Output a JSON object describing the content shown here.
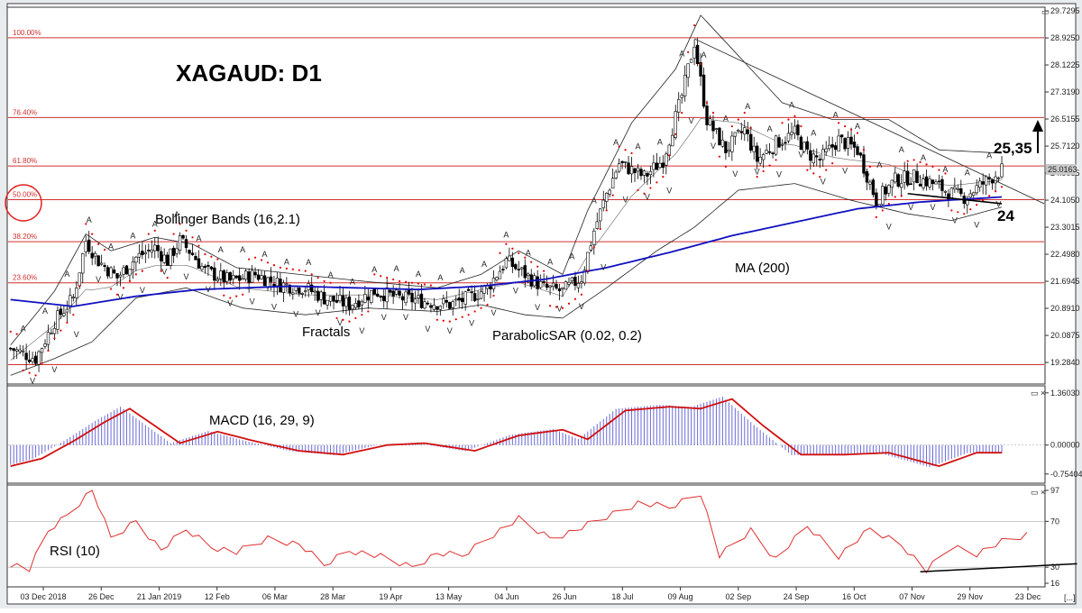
{
  "chart_title": "XAGAUD: D1",
  "colors": {
    "frame": "#3d3d3d",
    "fib": "#d03030",
    "ma": "#1010c0",
    "bollinger": "#222222",
    "sar": "#e00000",
    "fractal_up": "#1db81d",
    "fractal_down": "#d02020",
    "macd_hist": "#6b6bd6",
    "macd_signal": "#d01010",
    "rsi": "#e03030"
  },
  "annotations": {
    "bollinger": "Bollinger Bands (16,2.1)",
    "fractals": "Fractals",
    "parabolic": "ParabolicSAR (0.02, 0.2)",
    "ma": "MA (200)",
    "macd": "MACD (16, 29, 9)",
    "rsi": "RSI (10)",
    "resistance": "25,35",
    "support": "24"
  },
  "window_buttons": {
    "main": "▭",
    "sub": "▭ ×",
    "scroll": "[...]"
  },
  "chart_data": [
    {
      "type": "candlestick",
      "title": "XAGAUD: D1",
      "price_ticks": [
        "29.7295",
        "28.9250",
        "28.1225",
        "27.3190",
        "26.5155",
        "25.7120",
        "24.9085",
        "24.1050",
        "23.3015",
        "22.4980",
        "21.6945",
        "20.8910",
        "20.0875",
        "19.2840"
      ],
      "current_price_label": "25.0163",
      "ylim": [
        18.75,
        29.73
      ],
      "fib_levels": [
        {
          "label": "100.00%",
          "value": 28.93
        },
        {
          "label": "76.40%",
          "value": 26.56
        },
        {
          "label": "61.80%",
          "value": 25.12
        },
        {
          "label": "50.00%",
          "value": 24.12
        },
        {
          "label": "38.20%",
          "value": 22.87
        },
        {
          "label": "23.60%",
          "value": 21.65
        },
        {
          "label": "",
          "value": 19.22
        }
      ],
      "x_labels": [
        "03 Dec 2018",
        "26 Dec",
        "21 Jan 2019",
        "12 Feb",
        "06 Mar",
        "28 Mar",
        "19 Apr",
        "13 May",
        "04 Jun",
        "26 Jun",
        "18 Jul",
        "09 Aug",
        "02 Sep",
        "24 Sep",
        "16 Oct",
        "07 Nov",
        "29 Nov",
        "23 Dec"
      ],
      "close_path": [
        [
          0,
          19.7
        ],
        [
          8,
          19.4
        ],
        [
          14,
          20.5
        ],
        [
          20,
          21.2
        ],
        [
          24,
          22.9
        ],
        [
          28,
          22.3
        ],
        [
          34,
          21.8
        ],
        [
          40,
          22.4
        ],
        [
          46,
          22.7
        ],
        [
          50,
          22.3
        ],
        [
          54,
          22.9
        ],
        [
          58,
          22.5
        ],
        [
          62,
          22.0
        ],
        [
          70,
          21.7
        ],
        [
          78,
          21.9
        ],
        [
          86,
          21.6
        ],
        [
          94,
          21.5
        ],
        [
          100,
          21.2
        ],
        [
          108,
          21.0
        ],
        [
          116,
          21.4
        ],
        [
          124,
          21.2
        ],
        [
          132,
          21.1
        ],
        [
          140,
          21.0
        ],
        [
          146,
          21.2
        ],
        [
          152,
          21.5
        ],
        [
          158,
          22.3
        ],
        [
          164,
          21.9
        ],
        [
          170,
          21.5
        ],
        [
          176,
          21.4
        ],
        [
          182,
          21.8
        ],
        [
          186,
          23.2
        ],
        [
          190,
          24.3
        ],
        [
          194,
          25.2
        ],
        [
          198,
          25.0
        ],
        [
          202,
          24.8
        ],
        [
          208,
          25.3
        ],
        [
          214,
          27.2
        ],
        [
          218,
          28.8
        ],
        [
          222,
          26.5
        ],
        [
          228,
          25.6
        ],
        [
          234,
          26.2
        ],
        [
          238,
          25.3
        ],
        [
          244,
          25.8
        ],
        [
          250,
          26.1
        ],
        [
          254,
          25.5
        ],
        [
          258,
          25.3
        ],
        [
          264,
          25.9
        ],
        [
          270,
          25.6
        ],
        [
          276,
          24.1
        ],
        [
          282,
          24.7
        ],
        [
          288,
          24.8
        ],
        [
          294,
          24.6
        ],
        [
          300,
          24.3
        ],
        [
          304,
          24.2
        ],
        [
          310,
          24.6
        ],
        [
          316,
          25.0
        ]
      ],
      "ma200_path": [
        [
          0,
          21.15
        ],
        [
          20,
          20.95
        ],
        [
          40,
          21.25
        ],
        [
          60,
          21.45
        ],
        [
          90,
          21.55
        ],
        [
          130,
          21.45
        ],
        [
          150,
          21.55
        ],
        [
          170,
          21.75
        ],
        [
          190,
          22.1
        ],
        [
          210,
          22.55
        ],
        [
          230,
          23.05
        ],
        [
          250,
          23.45
        ],
        [
          270,
          23.85
        ],
        [
          290,
          24.05
        ],
        [
          316,
          24.2
        ]
      ],
      "bollinger_upper_path": [
        [
          0,
          19.8
        ],
        [
          14,
          21.4
        ],
        [
          24,
          23.1
        ],
        [
          32,
          22.6
        ],
        [
          46,
          23.0
        ],
        [
          58,
          22.8
        ],
        [
          72,
          22.1
        ],
        [
          92,
          21.9
        ],
        [
          112,
          21.7
        ],
        [
          136,
          21.5
        ],
        [
          150,
          21.9
        ],
        [
          162,
          22.6
        ],
        [
          176,
          21.9
        ],
        [
          184,
          23.8
        ],
        [
          198,
          26.4
        ],
        [
          212,
          28.0
        ],
        [
          220,
          29.6
        ],
        [
          230,
          28.6
        ],
        [
          246,
          27.0
        ],
        [
          262,
          26.5
        ],
        [
          280,
          26.5
        ],
        [
          296,
          25.6
        ],
        [
          316,
          25.5
        ]
      ],
      "bollinger_lower_path": [
        [
          0,
          18.9
        ],
        [
          14,
          19.4
        ],
        [
          26,
          19.9
        ],
        [
          40,
          21.2
        ],
        [
          56,
          21.5
        ],
        [
          74,
          20.9
        ],
        [
          94,
          20.7
        ],
        [
          114,
          20.9
        ],
        [
          136,
          20.8
        ],
        [
          150,
          21.0
        ],
        [
          164,
          20.7
        ],
        [
          176,
          20.6
        ],
        [
          190,
          21.5
        ],
        [
          206,
          22.6
        ],
        [
          218,
          23.3
        ],
        [
          232,
          24.4
        ],
        [
          250,
          24.6
        ],
        [
          268,
          24.1
        ],
        [
          286,
          23.7
        ],
        [
          300,
          23.5
        ],
        [
          316,
          23.9
        ]
      ]
    },
    {
      "type": "line",
      "title": "MACD (16, 29, 9)",
      "y_ticks": [
        "1.36030",
        "0.00000",
        "-0.75404"
      ],
      "ylim": [
        -0.9,
        1.45
      ],
      "signal_path": [
        [
          0,
          -0.55
        ],
        [
          10,
          -0.35
        ],
        [
          20,
          0.1
        ],
        [
          30,
          0.6
        ],
        [
          38,
          0.95
        ],
        [
          46,
          0.5
        ],
        [
          54,
          0.05
        ],
        [
          66,
          0.35
        ],
        [
          78,
          0.1
        ],
        [
          92,
          -0.15
        ],
        [
          106,
          -0.25
        ],
        [
          120,
          0.0
        ],
        [
          132,
          0.05
        ],
        [
          148,
          -0.15
        ],
        [
          162,
          0.25
        ],
        [
          176,
          0.4
        ],
        [
          184,
          0.15
        ],
        [
          196,
          0.9
        ],
        [
          210,
          1.0
        ],
        [
          220,
          0.95
        ],
        [
          230,
          1.2
        ],
        [
          240,
          0.5
        ],
        [
          252,
          -0.25
        ],
        [
          266,
          -0.25
        ],
        [
          280,
          -0.2
        ],
        [
          296,
          -0.55
        ],
        [
          308,
          -0.2
        ],
        [
          320,
          -0.2
        ]
      ]
    },
    {
      "type": "line",
      "title": "RSI (10)",
      "y_ticks": [
        "97",
        "70",
        "30",
        "16"
      ],
      "ylim": [
        16,
        97
      ],
      "rsi_path": [
        [
          0,
          33
        ],
        [
          6,
          28
        ],
        [
          12,
          62
        ],
        [
          18,
          75
        ],
        [
          26,
          98
        ],
        [
          32,
          55
        ],
        [
          40,
          70
        ],
        [
          48,
          45
        ],
        [
          56,
          63
        ],
        [
          64,
          48
        ],
        [
          72,
          43
        ],
        [
          82,
          55
        ],
        [
          92,
          50
        ],
        [
          100,
          32
        ],
        [
          108,
          45
        ],
        [
          118,
          39
        ],
        [
          128,
          30
        ],
        [
          136,
          42
        ],
        [
          144,
          40
        ],
        [
          154,
          59
        ],
        [
          162,
          72
        ],
        [
          172,
          55
        ],
        [
          180,
          62
        ],
        [
          190,
          74
        ],
        [
          200,
          86
        ],
        [
          210,
          82
        ],
        [
          220,
          95
        ],
        [
          226,
          40
        ],
        [
          236,
          62
        ],
        [
          244,
          37
        ],
        [
          254,
          66
        ],
        [
          264,
          40
        ],
        [
          274,
          63
        ],
        [
          284,
          50
        ],
        [
          292,
          27
        ],
        [
          300,
          48
        ],
        [
          308,
          42
        ],
        [
          316,
          52
        ],
        [
          324,
          58
        ]
      ],
      "trendline_path": [
        [
          290,
          26
        ],
        [
          340,
          33
        ]
      ]
    }
  ]
}
